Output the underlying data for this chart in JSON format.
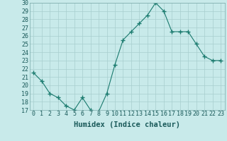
{
  "x": [
    0,
    1,
    2,
    3,
    4,
    5,
    6,
    7,
    8,
    9,
    10,
    11,
    12,
    13,
    14,
    15,
    16,
    17,
    18,
    19,
    20,
    21,
    22,
    23
  ],
  "y": [
    21.5,
    20.5,
    19.0,
    18.5,
    17.5,
    17.0,
    18.5,
    17.0,
    16.8,
    19.0,
    22.5,
    25.5,
    26.5,
    27.5,
    28.5,
    30.0,
    29.0,
    26.5,
    26.5,
    26.5,
    25.0,
    23.5,
    23.0,
    23.0
  ],
  "line_color": "#1a7a6e",
  "marker": "+",
  "marker_size": 5,
  "bg_color": "#c8eaea",
  "grid_color": "#a8cece",
  "xlabel": "Humidex (Indice chaleur)",
  "ylim": [
    17,
    30
  ],
  "xlim": [
    -0.5,
    23.5
  ],
  "yticks": [
    17,
    18,
    19,
    20,
    21,
    22,
    23,
    24,
    25,
    26,
    27,
    28,
    29,
    30
  ],
  "xticks": [
    0,
    1,
    2,
    3,
    4,
    5,
    6,
    7,
    8,
    9,
    10,
    11,
    12,
    13,
    14,
    15,
    16,
    17,
    18,
    19,
    20,
    21,
    22,
    23
  ],
  "tick_fontsize": 6,
  "xlabel_fontsize": 7.5
}
